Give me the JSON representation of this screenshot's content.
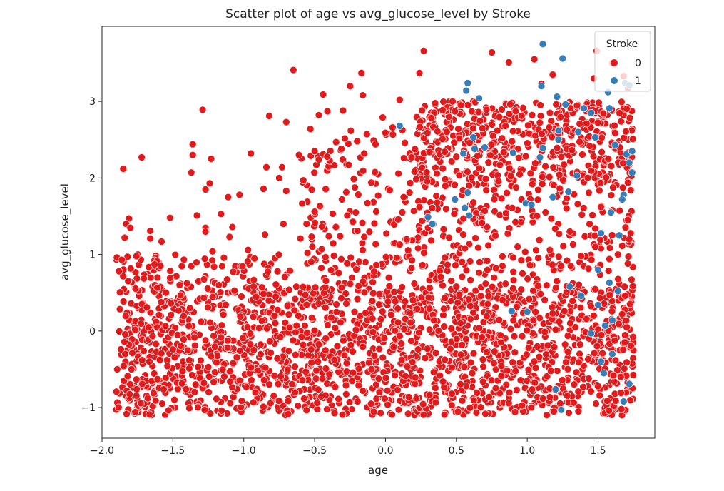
{
  "chart_data": {
    "type": "scatter",
    "title": "Scatter plot of age vs avg_glucose_level by Stroke",
    "xlabel": "age",
    "ylabel": "avg_glucose_level",
    "xlim": [
      -2.0,
      1.9
    ],
    "ylim": [
      -1.4,
      3.98
    ],
    "xticks": [
      -2.0,
      -1.5,
      -1.0,
      -0.5,
      0.0,
      0.5,
      1.0,
      1.5
    ],
    "xtick_labels": [
      "−2.0",
      "−1.5",
      "−1.0",
      "−0.5",
      "0.0",
      "0.5",
      "1.0",
      "1.5"
    ],
    "yticks": [
      -1,
      0,
      1,
      2,
      3
    ],
    "ytick_labels": [
      "−1",
      "0",
      "1",
      "2",
      "3"
    ],
    "grid": false,
    "legend": {
      "title": "Stroke",
      "position": "top-right",
      "entries": [
        {
          "label": "0",
          "color": "#e31a1c"
        },
        {
          "label": "1",
          "color": "#377eb8"
        }
      ]
    },
    "series": [
      {
        "name": "0",
        "color": "#e31a1c",
        "points": [
          [
            -1.85,
            2.12
          ],
          [
            -1.72,
            2.27
          ],
          [
            -1.29,
            2.89
          ],
          [
            -1.36,
            2.44
          ],
          [
            -1.36,
            2.3
          ],
          [
            -1.27,
            1.85
          ],
          [
            -1.24,
            1.93
          ],
          [
            -1.23,
            2.25
          ],
          [
            -1.37,
            2.07
          ],
          [
            -0.95,
            2.32
          ],
          [
            -0.82,
            2.81
          ],
          [
            -0.7,
            2.73
          ],
          [
            -0.65,
            3.41
          ],
          [
            -0.53,
            2.64
          ],
          [
            -0.44,
            3.09
          ],
          [
            -0.47,
            2.82
          ],
          [
            -0.41,
            2.87
          ],
          [
            -0.3,
            2.88
          ],
          [
            -0.25,
            3.2
          ],
          [
            -0.16,
            3.08
          ],
          [
            -0.17,
            3.37
          ],
          [
            -0.02,
            2.79
          ],
          [
            0.1,
            3.02
          ],
          [
            0.24,
            3.37
          ],
          [
            0.27,
            3.66
          ],
          [
            0.75,
            3.64
          ],
          [
            0.87,
            3.51
          ],
          [
            1.05,
            3.55
          ],
          [
            1.1,
            3.23
          ],
          [
            1.18,
            3.35
          ],
          [
            1.47,
            3.3
          ],
          [
            1.49,
            3.66
          ],
          [
            1.6,
            3.5
          ],
          [
            1.68,
            3.33
          ],
          [
            1.71,
            3.17
          ],
          [
            -1.81,
            1.47
          ],
          [
            -1.83,
            1.4
          ],
          [
            -1.8,
            1.35
          ],
          [
            -1.84,
            1.22
          ],
          [
            -1.82,
            0.97
          ],
          [
            -1.86,
            0.93
          ],
          [
            -1.88,
            0.78
          ],
          [
            -1.66,
            1.31
          ],
          [
            -1.66,
            1.21
          ],
          [
            -1.58,
            1.17
          ],
          [
            -1.52,
            1.48
          ],
          [
            -1.33,
            1.51
          ],
          [
            -1.27,
            1.35
          ],
          [
            -1.27,
            1.3
          ],
          [
            -1.16,
            1.53
          ],
          [
            -1.11,
            1.75
          ],
          [
            -1.03,
            1.78
          ],
          [
            -1.08,
            1.36
          ],
          [
            -0.86,
            1.86
          ],
          [
            -0.84,
            2.14
          ],
          [
            -0.73,
            2.14
          ],
          [
            -0.75,
            2.0
          ],
          [
            -0.7,
            1.83
          ],
          [
            -0.61,
            2.3
          ],
          [
            -0.58,
            1.97
          ],
          [
            -0.5,
            1.56
          ],
          [
            -0.47,
            2.24
          ],
          [
            -0.5,
            2.35
          ],
          [
            -0.26,
            2.17
          ],
          [
            -0.2,
            2.48
          ],
          [
            -0.15,
            2.32
          ],
          [
            -0.07,
            2.44
          ],
          [
            0.0,
            2.59
          ],
          [
            0.05,
            2.66
          ],
          [
            -0.27,
            1.51
          ],
          [
            -0.35,
            1.36
          ],
          [
            -0.32,
            1.24
          ],
          [
            -0.21,
            1.55
          ],
          [
            -0.1,
            1.94
          ],
          [
            0.03,
            1.84
          ],
          [
            0.13,
            2.26
          ],
          [
            0.17,
            1.81
          ],
          [
            0.2,
            1.57
          ],
          [
            0.09,
            1.46
          ],
          [
            0.24,
            1.62
          ],
          [
            -1.22,
            1.04
          ],
          [
            -1.1,
            1.23
          ],
          [
            -0.97,
            1.06
          ],
          [
            -0.85,
            1.26
          ],
          [
            -0.72,
            1.4
          ],
          [
            -0.6,
            1.21
          ],
          [
            -0.45,
            1.07
          ],
          [
            -0.4,
            1.24
          ],
          [
            -0.55,
            1.02
          ],
          [
            -0.15,
            1.23
          ],
          [
            0.1,
            1.13
          ],
          [
            0.15,
            1.2
          ],
          [
            0.3,
            1.35
          ],
          [
            0.41,
            1.33
          ],
          [
            0.55,
            1.47
          ],
          [
            0.62,
            1.68
          ],
          [
            0.7,
            1.57
          ],
          [
            0.85,
            1.54
          ],
          [
            0.96,
            1.72
          ],
          [
            1.17,
            1.47
          ],
          [
            1.3,
            1.3
          ],
          [
            1.44,
            1.4
          ],
          [
            1.52,
            1.62
          ],
          [
            1.6,
            1.58
          ],
          [
            1.71,
            1.45
          ],
          [
            1.73,
            1.28
          ],
          [
            1.72,
            1.2
          ],
          [
            1.71,
            0.88
          ],
          [
            1.64,
            1.0
          ],
          [
            1.58,
            0.94
          ],
          [
            1.48,
            1.1
          ],
          [
            1.38,
            0.98
          ],
          [
            1.28,
            0.92
          ],
          [
            1.16,
            1.06
          ],
          [
            1.02,
            0.86
          ],
          [
            0.9,
            0.96
          ],
          [
            0.78,
            0.82
          ],
          [
            0.66,
            0.76
          ],
          [
            0.54,
            0.9
          ],
          [
            0.42,
            0.96
          ]
        ],
        "clusters": [
          {
            "x": [
              -1.9,
              1.75
            ],
            "y": [
              -1.1,
              0.55
            ],
            "n": 1900,
            "seed": 11
          },
          {
            "x": [
              -1.9,
              1.75
            ],
            "y": [
              0.55,
              1.0
            ],
            "n": 260,
            "seed": 23
          },
          {
            "x": [
              0.2,
              1.75
            ],
            "y": [
              1.9,
              3.0
            ],
            "n": 520,
            "seed": 37
          },
          {
            "x": [
              0.2,
              1.75
            ],
            "y": [
              1.0,
              1.9
            ],
            "n": 150,
            "seed": 41
          },
          {
            "x": [
              -0.6,
              0.3
            ],
            "y": [
              1.0,
              2.7
            ],
            "n": 110,
            "seed": 53
          }
        ]
      },
      {
        "name": "1",
        "color": "#377eb8",
        "points": [
          [
            1.11,
            3.75
          ],
          [
            1.25,
            3.56
          ],
          [
            1.1,
            3.2
          ],
          [
            0.58,
            3.24
          ],
          [
            0.57,
            3.14
          ],
          [
            0.66,
            3.04
          ],
          [
            1.21,
            3.06
          ],
          [
            1.27,
            2.96
          ],
          [
            1.4,
            2.91
          ],
          [
            1.45,
            2.85
          ],
          [
            1.57,
            3.12
          ],
          [
            1.69,
            3.24
          ],
          [
            1.72,
            3.21
          ],
          [
            1.58,
            2.91
          ],
          [
            0.1,
            2.68
          ],
          [
            0.63,
            2.38
          ],
          [
            0.55,
            2.32
          ],
          [
            0.62,
            2.53
          ],
          [
            0.7,
            2.4
          ],
          [
            0.9,
            2.33
          ],
          [
            1.09,
            2.27
          ],
          [
            1.22,
            2.5
          ],
          [
            1.11,
            2.39
          ],
          [
            1.22,
            2.62
          ],
          [
            1.36,
            2.6
          ],
          [
            1.48,
            2.53
          ],
          [
            1.62,
            2.43
          ],
          [
            1.7,
            2.31
          ],
          [
            1.72,
            2.2
          ],
          [
            1.74,
            2.07
          ],
          [
            1.68,
            1.78
          ],
          [
            1.74,
            2.35
          ],
          [
            1.29,
            1.82
          ],
          [
            1.35,
            2.03
          ],
          [
            0.58,
            1.81
          ],
          [
            0.49,
            1.72
          ],
          [
            0.56,
            1.61
          ],
          [
            0.3,
            1.49
          ],
          [
            0.33,
            1.4
          ],
          [
            0.59,
            1.51
          ],
          [
            0.99,
            1.67
          ],
          [
            1.03,
            1.65
          ],
          [
            1.18,
            1.75
          ],
          [
            1.59,
            1.55
          ],
          [
            1.67,
            1.72
          ],
          [
            1.52,
            1.28
          ],
          [
            1.65,
            1.25
          ],
          [
            1.5,
            0.8
          ],
          [
            1.3,
            0.58
          ],
          [
            1.58,
            0.63
          ],
          [
            0.89,
            0.26
          ],
          [
            1.0,
            0.25
          ],
          [
            1.5,
            0.34
          ],
          [
            1.55,
            0.07
          ],
          [
            1.6,
            0.14
          ],
          [
            1.45,
            -0.03
          ],
          [
            1.54,
            -0.55
          ],
          [
            1.6,
            -0.3
          ],
          [
            1.24,
            -1.03
          ],
          [
            1.72,
            -0.69
          ],
          [
            1.38,
            0.46
          ],
          [
            1.64,
            0.52
          ],
          [
            1.52,
            -0.4
          ],
          [
            1.2,
            -0.76
          ],
          [
            1.68,
            -0.92
          ]
        ]
      }
    ]
  }
}
